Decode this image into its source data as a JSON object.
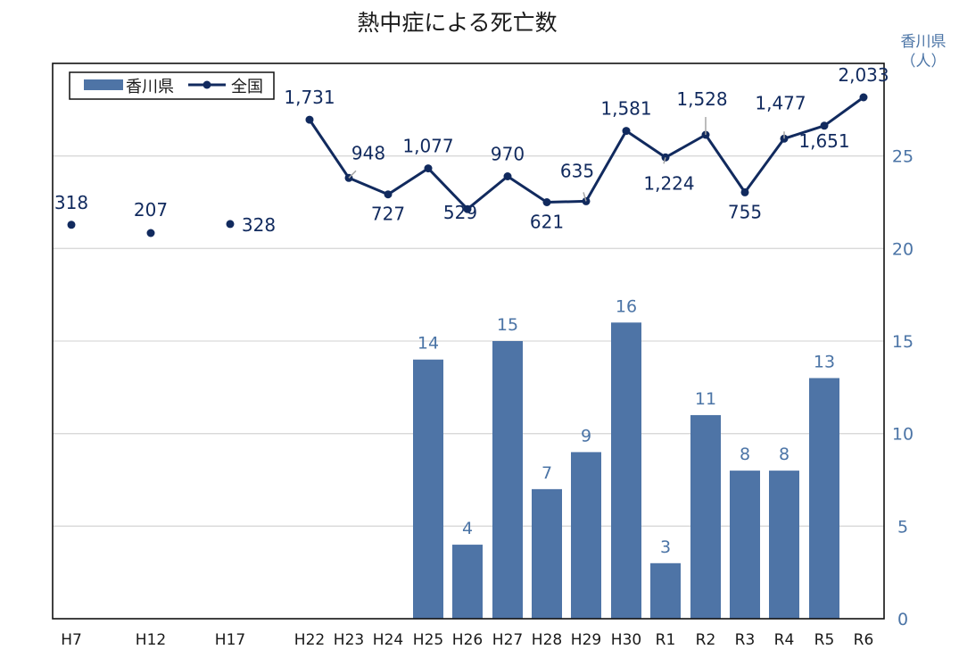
{
  "chart_data": {
    "type": "bar",
    "title": "熱中症による死亡数",
    "ylabel": "香川県",
    "yunit": "（人）",
    "ylim": [
      0,
      30
    ],
    "yticks": [
      0,
      5,
      10,
      15,
      20,
      25
    ],
    "grid": true,
    "legend_position": "top-left",
    "categories": [
      "H7",
      "H12",
      "H17",
      "H22",
      "H23",
      "H24",
      "H25",
      "H26",
      "H27",
      "H28",
      "H29",
      "H30",
      "R1",
      "R2",
      "R3",
      "R4",
      "R5",
      "R6"
    ],
    "series": [
      {
        "name": "香川県",
        "kind": "bar",
        "color": "#4e74a6",
        "values": [
          null,
          null,
          null,
          null,
          null,
          null,
          14,
          4,
          15,
          7,
          9,
          16,
          3,
          11,
          8,
          8,
          13,
          null
        ],
        "labels": [
          null,
          null,
          null,
          null,
          null,
          null,
          "14",
          "4",
          "15",
          "7",
          "9",
          "16",
          "3",
          "11",
          "8",
          "8",
          "13",
          null
        ]
      },
      {
        "name": "全国",
        "kind": "line",
        "color": "#112a5e",
        "values": [
          318,
          207,
          328,
          1731,
          948,
          727,
          1077,
          529,
          970,
          621,
          635,
          1581,
          1224,
          1528,
          755,
          1477,
          1651,
          2033
        ],
        "labels": [
          "318",
          "207",
          "328",
          "1,731",
          "948",
          "727",
          "1,077",
          "529",
          "970",
          "621",
          "635",
          "1,581",
          "1,224",
          "1,528",
          "755",
          "1,477",
          "1,651",
          "2,033"
        ],
        "connect_from_index": 3
      }
    ]
  }
}
